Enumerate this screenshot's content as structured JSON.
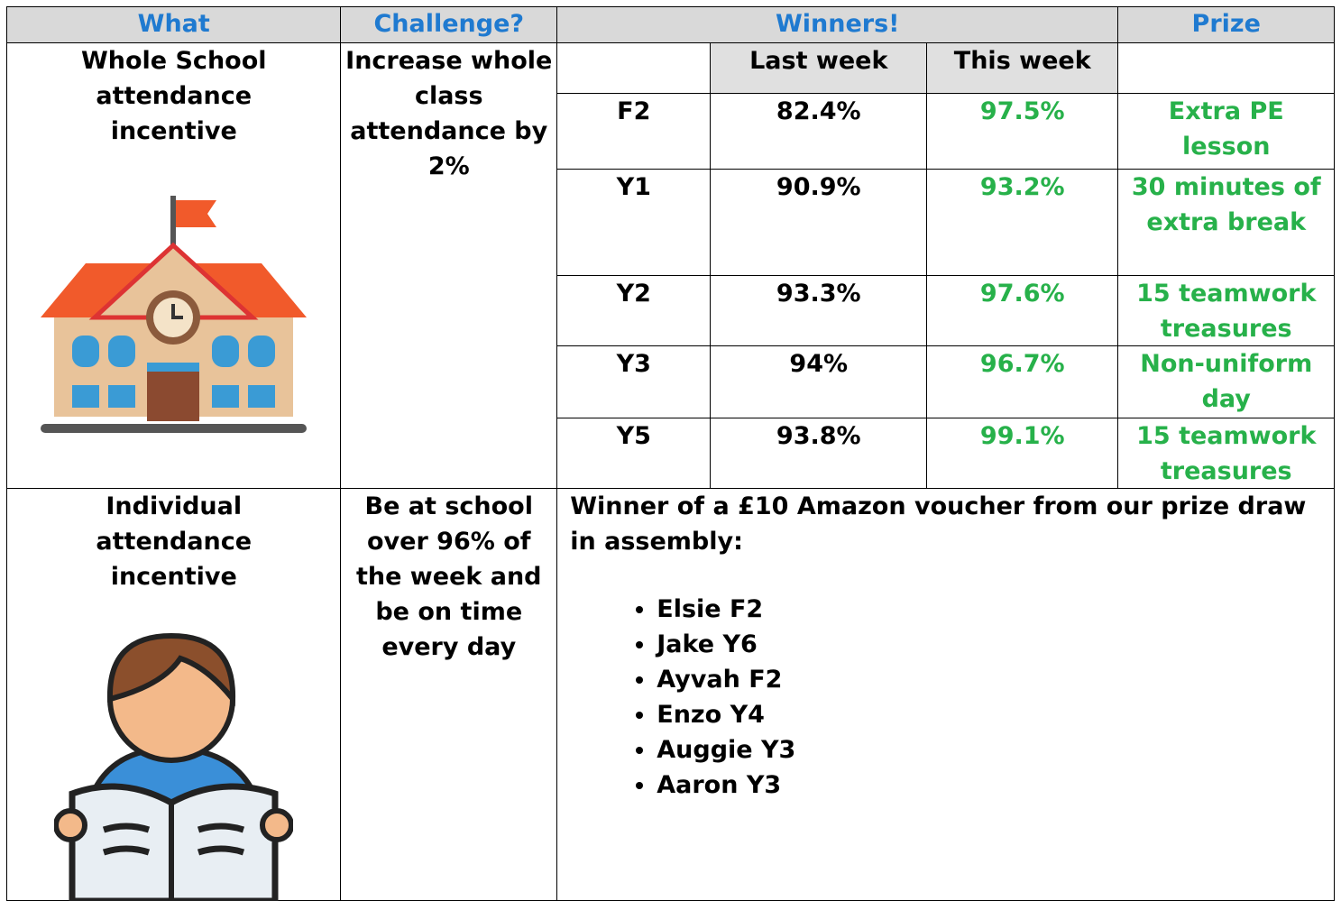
{
  "header": [
    "What",
    "Challenge?",
    "Winners!",
    "Prize"
  ],
  "whole_school": {
    "what": "Whole School attendance incentive",
    "challenge": "Increase whole class attendance by 2%",
    "columns": [
      "Last week",
      "This week"
    ],
    "rows": [
      [
        "F2",
        "82.4%",
        "97.5%",
        "Extra PE lesson"
      ],
      [
        "Y1",
        "90.9%",
        "93.2%",
        "30 minutes of extra break"
      ],
      [
        "Y2",
        "93.3%",
        "97.6%",
        "15 teamwork treasures"
      ],
      [
        "Y3",
        "94%",
        "96.7%",
        "Non-uniform day"
      ],
      [
        "Y5",
        "93.8%",
        "99.1%",
        "15 teamwork treasures"
      ]
    ]
  },
  "individual": {
    "what": "Individual attendance incentive",
    "challenge": "Be at school over 96% of the week and be on time every day",
    "intro": "Winner of a £10 Amazon voucher from our prize draw in assembly:",
    "winners": [
      "Elsie F2",
      "Jake Y6",
      "Ayvah F2",
      "Enzo Y4",
      "Auggie Y3",
      "Aaron Y3"
    ]
  }
}
